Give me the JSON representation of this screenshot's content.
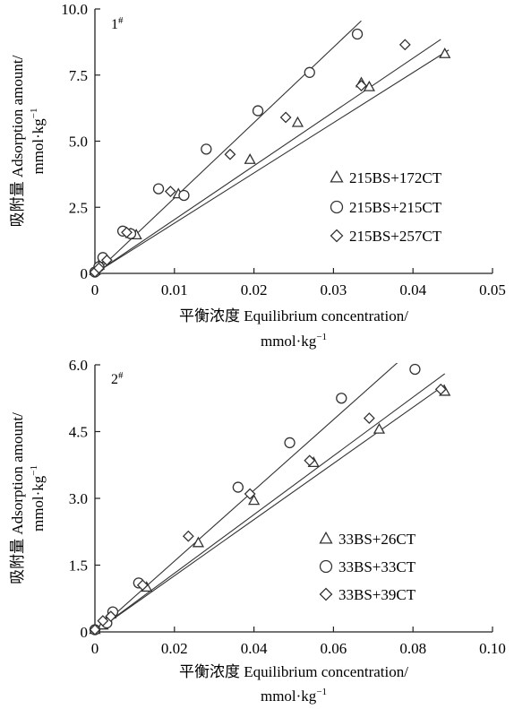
{
  "chart_data": [
    {
      "type": "scatter",
      "panel_label": "1",
      "panel_label_sup": "#",
      "xlabel": "平衡浓度 Equilibrium concentration/",
      "xunit": "mmol·kg",
      "xunit_sup": "−1",
      "ylabel": "吸附量 Adsorption amount/",
      "yunit": "mmol·kg",
      "yunit_sup": "−1",
      "xlim": [
        0,
        0.05
      ],
      "ylim": [
        0,
        10.0
      ],
      "xticks": [
        0,
        0.01,
        0.02,
        0.03,
        0.04,
        0.05
      ],
      "xtick_labels": [
        "0",
        "0.01",
        "0.02",
        "0.03",
        "0.04",
        "0.05"
      ],
      "yticks": [
        0,
        2.5,
        5.0,
        7.5,
        10.0
      ],
      "ytick_labels": [
        "0",
        "2.5",
        "5.0",
        "7.5",
        "10.0"
      ],
      "legend_position": "bottom-right",
      "series": [
        {
          "name": "215BS+172CT",
          "marker": "triangle",
          "points": [
            [
              0.0,
              0.1
            ],
            [
              0.0005,
              0.3
            ],
            [
              0.0012,
              0.55
            ],
            [
              0.0045,
              1.5
            ],
            [
              0.0052,
              1.45
            ],
            [
              0.0105,
              3.0
            ],
            [
              0.0195,
              4.3
            ],
            [
              0.0255,
              5.7
            ],
            [
              0.0335,
              7.2
            ],
            [
              0.0345,
              7.05
            ],
            [
              0.044,
              8.3
            ]
          ],
          "fit": [
            [
              0,
              0
            ],
            [
              0.0445,
              8.45
            ]
          ]
        },
        {
          "name": "215BS+215CT",
          "marker": "circle",
          "points": [
            [
              0.0,
              0.05
            ],
            [
              0.0005,
              0.25
            ],
            [
              0.001,
              0.6
            ],
            [
              0.0035,
              1.6
            ],
            [
              0.0045,
              1.5
            ],
            [
              0.008,
              3.2
            ],
            [
              0.0112,
              2.95
            ],
            [
              0.014,
              4.7
            ],
            [
              0.0205,
              6.15
            ],
            [
              0.027,
              7.6
            ],
            [
              0.033,
              9.05
            ]
          ],
          "fit": [
            [
              0,
              0
            ],
            [
              0.0335,
              9.55
            ]
          ]
        },
        {
          "name": "215BS+257CT",
          "marker": "diamond",
          "points": [
            [
              0.0,
              0.05
            ],
            [
              0.0005,
              0.2
            ],
            [
              0.0015,
              0.5
            ],
            [
              0.004,
              1.55
            ],
            [
              0.0095,
              3.1
            ],
            [
              0.017,
              4.5
            ],
            [
              0.024,
              5.9
            ],
            [
              0.0335,
              7.1
            ],
            [
              0.039,
              8.65
            ]
          ],
          "fit": [
            [
              0,
              0
            ],
            [
              0.0435,
              8.85
            ]
          ]
        }
      ]
    },
    {
      "type": "scatter",
      "panel_label": "2",
      "panel_label_sup": "#",
      "xlabel": "平衡浓度 Equilibrium concentration/",
      "xunit": "mmol·kg",
      "xunit_sup": "−1",
      "ylabel": "吸附量 Adsorption amount/",
      "yunit": "mmol·kg",
      "yunit_sup": "−1",
      "xlim": [
        0,
        0.1
      ],
      "ylim": [
        0,
        6.0
      ],
      "xticks": [
        0,
        0.02,
        0.04,
        0.06,
        0.08,
        0.1
      ],
      "xtick_labels": [
        "0",
        "0.02",
        "0.04",
        "0.06",
        "0.08",
        "0.10"
      ],
      "yticks": [
        0,
        1.5,
        3.0,
        4.5,
        6.0
      ],
      "ytick_labels": [
        "0",
        "1.5",
        "3.0",
        "4.5",
        "6.0"
      ],
      "legend_position": "bottom-right",
      "series": [
        {
          "name": "33BS+26CT",
          "marker": "triangle",
          "points": [
            [
              0.0,
              0.05
            ],
            [
              0.002,
              0.15
            ],
            [
              0.004,
              0.4
            ],
            [
              0.013,
              1.0
            ],
            [
              0.026,
              2.0
            ],
            [
              0.04,
              2.95
            ],
            [
              0.055,
              3.8
            ],
            [
              0.0715,
              4.55
            ],
            [
              0.088,
              5.4
            ]
          ],
          "fit": [
            [
              0,
              0
            ],
            [
              0.088,
              5.55
            ]
          ]
        },
        {
          "name": "33BS+33CT",
          "marker": "circle",
          "points": [
            [
              0.0,
              0.05
            ],
            [
              0.003,
              0.2
            ],
            [
              0.0045,
              0.45
            ],
            [
              0.011,
              1.1
            ],
            [
              0.036,
              3.25
            ],
            [
              0.049,
              4.25
            ],
            [
              0.062,
              5.25
            ],
            [
              0.0805,
              5.9
            ]
          ],
          "fit": [
            [
              0,
              0
            ],
            [
              0.078,
              6.2
            ]
          ]
        },
        {
          "name": "33BS+39CT",
          "marker": "diamond",
          "points": [
            [
              0.0,
              0.05
            ],
            [
              0.002,
              0.25
            ],
            [
              0.004,
              0.35
            ],
            [
              0.012,
              1.05
            ],
            [
              0.0235,
              2.15
            ],
            [
              0.039,
              3.1
            ],
            [
              0.054,
              3.85
            ],
            [
              0.069,
              4.8
            ],
            [
              0.087,
              5.45
            ]
          ],
          "fit": [
            [
              0,
              0
            ],
            [
              0.088,
              5.8
            ]
          ]
        }
      ]
    }
  ]
}
